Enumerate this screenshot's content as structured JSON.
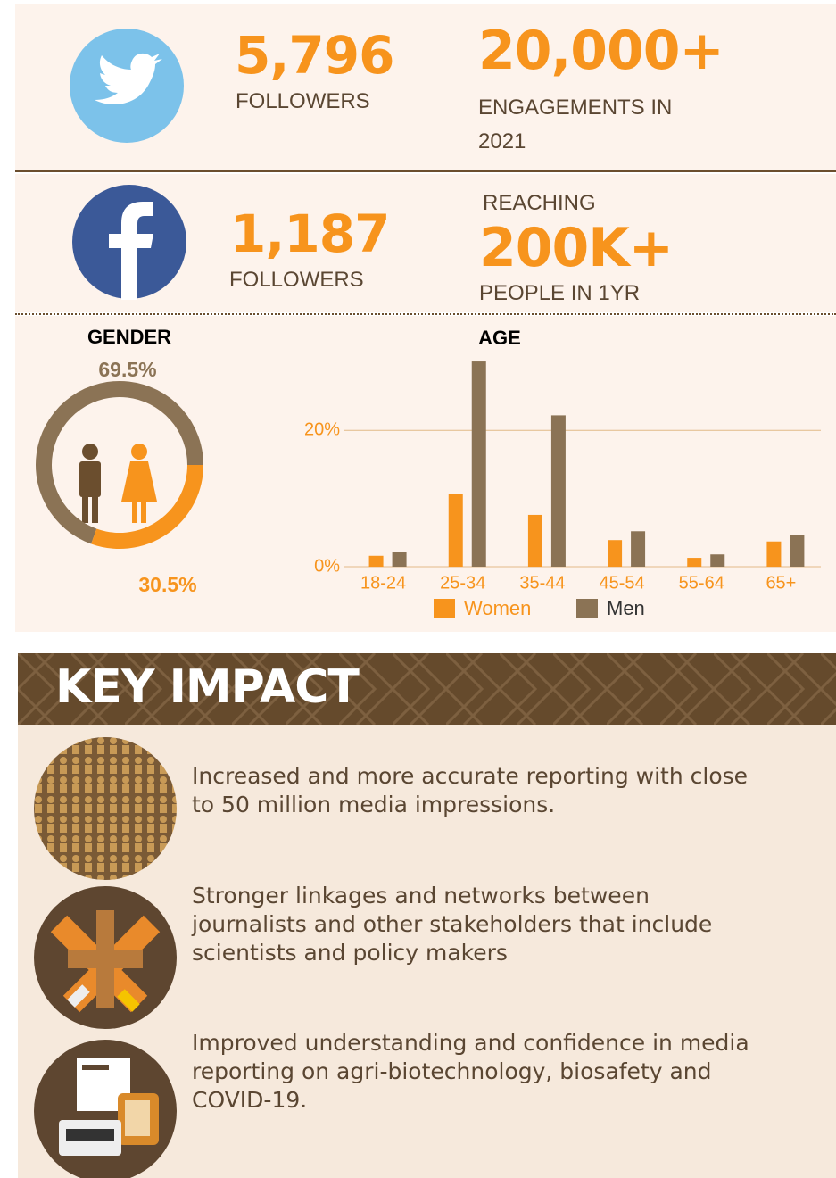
{
  "twitter": {
    "followers_count": "5,796",
    "followers_label": "FOLLOWERS",
    "engagements": "20,000+",
    "engagements_label": "ENGAGEMENTS IN 2021"
  },
  "facebook": {
    "followers_count": "1,187",
    "followers_label": "FOLLOWERS",
    "reach_prefix": "REACHING",
    "reach": "200K+",
    "reach_suffix": "PEOPLE IN 1YR"
  },
  "chart_data": [
    {
      "type": "pie",
      "title": "GENDER",
      "values": [
        69.5,
        30.5
      ],
      "value_labels": [
        "69.5%",
        "30.5%"
      ],
      "colors": [
        "#8b7355",
        "#f7941d"
      ]
    },
    {
      "type": "bar",
      "title": "AGE",
      "categories": [
        "18-24",
        "25-34",
        "35-44",
        "45-54",
        "55-64",
        "65+"
      ],
      "series": [
        {
          "name": "Women",
          "color": "#f7941d",
          "values": [
            1.6,
            10.7,
            7.6,
            3.9,
            1.3,
            3.7
          ]
        },
        {
          "name": "Men",
          "color": "#8b7355",
          "values": [
            2.1,
            30.1,
            22.2,
            5.2,
            1.8,
            4.7
          ]
        }
      ],
      "ylim": [
        0,
        30.5
      ],
      "yticks": [
        {
          "value": 0,
          "label": "0%"
        },
        {
          "value": 20,
          "label": "20%"
        }
      ],
      "grid": true,
      "legend": "bottom"
    }
  ],
  "key_impact": {
    "title": "KEY IMPACT",
    "items": [
      "Increased and more accurate reporting with close to 50 million media impressions.",
      "Stronger linkages and networks between journalists and other stakeholders that include scientists and policy makers",
      "Improved understanding and confidence in media reporting on agri-biotechnology, biosafety and COVID-19."
    ]
  }
}
